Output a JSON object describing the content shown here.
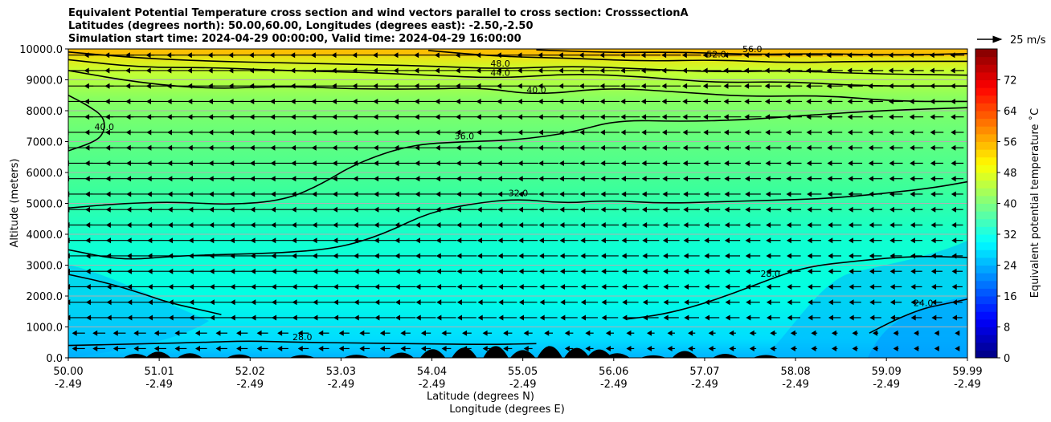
{
  "chart_data": {
    "type": "contour-cross-section",
    "title_lines": [
      "Equivalent Potential Temperature cross section and wind vectors parallel to cross section: CrosssectionA",
      "Latitudes (degrees north): 50.00,60.00, Longitudes (degrees east): -2.50,-2.50",
      "Simulation start time: 2024-04-29 00:00:00, Valid time: 2024-04-29 16:00:00"
    ],
    "xlabel": "Latitude (degrees N)",
    "xlabel2": "Longitude (degrees E)",
    "ylabel": "Altitude (meters)",
    "x_range": [
      50.0,
      59.99
    ],
    "ylim": [
      0,
      10000
    ],
    "x_ticks": [
      {
        "value": 50.0,
        "lat": "50.00",
        "lon": "-2.49"
      },
      {
        "value": 51.01,
        "lat": "51.01",
        "lon": "-2.49"
      },
      {
        "value": 52.02,
        "lat": "52.02",
        "lon": "-2.49"
      },
      {
        "value": 53.03,
        "lat": "53.03",
        "lon": "-2.49"
      },
      {
        "value": 54.04,
        "lat": "54.04",
        "lon": "-2.49"
      },
      {
        "value": 55.05,
        "lat": "55.05",
        "lon": "-2.49"
      },
      {
        "value": 56.06,
        "lat": "56.06",
        "lon": "-2.49"
      },
      {
        "value": 57.07,
        "lat": "57.07",
        "lon": "-2.49"
      },
      {
        "value": 58.08,
        "lat": "58.08",
        "lon": "-2.49"
      },
      {
        "value": 59.09,
        "lat": "59.09",
        "lon": "-2.49"
      },
      {
        "value": 59.99,
        "lat": "59.99",
        "lon": "-2.49"
      }
    ],
    "y_ticks": [
      {
        "value": 0,
        "label": "0.0"
      },
      {
        "value": 1000,
        "label": "1000.0"
      },
      {
        "value": 2000,
        "label": "2000.0"
      },
      {
        "value": 3000,
        "label": "3000.0"
      },
      {
        "value": 4000,
        "label": "4000.0"
      },
      {
        "value": 5000,
        "label": "5000.0"
      },
      {
        "value": 6000,
        "label": "6000.0"
      },
      {
        "value": 7000,
        "label": "7000.0"
      },
      {
        "value": 8000,
        "label": "8000.0"
      },
      {
        "value": 9000,
        "label": "9000.0"
      },
      {
        "value": 10000,
        "label": "10000.0"
      }
    ],
    "grid": "horizontal",
    "colorbar": {
      "label": "Equivalent potential temperature ˚C",
      "range": [
        0,
        80
      ],
      "step": 2,
      "ticks": [
        "0",
        "8",
        "16",
        "24",
        "32",
        "40",
        "48",
        "56",
        "64",
        "72"
      ],
      "tick_values": [
        0,
        8,
        16,
        24,
        32,
        40,
        48,
        56,
        64,
        72
      ],
      "colormap": "jet"
    },
    "quiver_key": {
      "label": "25 m/s",
      "speed": 25
    },
    "contour_levels_labeled": [
      "24.0",
      "28.0",
      "32.0",
      "36.0",
      "40.0",
      "44.0",
      "48.0",
      "52.0",
      "56.0"
    ],
    "contours": [
      {
        "level": 28,
        "points": [
          [
            50.0,
            400
          ],
          [
            50.8,
            450
          ],
          [
            51.5,
            500
          ],
          [
            52.0,
            550
          ],
          [
            52.6,
            500
          ],
          [
            53.2,
            480
          ],
          [
            54.0,
            450
          ],
          [
            54.7,
            430
          ],
          [
            55.2,
            460
          ]
        ]
      },
      {
        "level": 28,
        "points": [
          [
            56.2,
            1250
          ],
          [
            56.6,
            1400
          ],
          [
            57.0,
            1700
          ],
          [
            57.4,
            2100
          ],
          [
            57.8,
            2550
          ],
          [
            58.2,
            2950
          ],
          [
            58.8,
            3150
          ],
          [
            59.4,
            3300
          ],
          [
            59.99,
            3250
          ]
        ]
      },
      {
        "level": 24,
        "points": [
          [
            58.9,
            800
          ],
          [
            59.2,
            1250
          ],
          [
            59.5,
            1600
          ],
          [
            59.75,
            1750
          ],
          [
            59.99,
            1900
          ]
        ]
      },
      {
        "level": 30,
        "points": [
          [
            50.0,
            2700
          ],
          [
            50.4,
            2450
          ],
          [
            50.8,
            2100
          ],
          [
            51.1,
            1800
          ],
          [
            51.4,
            1600
          ],
          [
            51.7,
            1400
          ]
        ]
      },
      {
        "level": 32,
        "points": [
          [
            50.0,
            3500
          ],
          [
            50.6,
            3150
          ],
          [
            51.2,
            3300
          ],
          [
            51.8,
            3350
          ],
          [
            52.4,
            3400
          ],
          [
            53.0,
            3550
          ],
          [
            53.5,
            4000
          ],
          [
            54.0,
            4700
          ],
          [
            54.5,
            5000
          ],
          [
            55.0,
            5150
          ],
          [
            55.5,
            5000
          ],
          [
            56.0,
            5100
          ],
          [
            56.6,
            5000
          ],
          [
            57.2,
            5050
          ],
          [
            57.8,
            5100
          ],
          [
            58.4,
            5150
          ],
          [
            59.0,
            5300
          ],
          [
            59.6,
            5500
          ],
          [
            59.99,
            5700
          ]
        ]
      },
      {
        "level": 36,
        "points": [
          [
            50.0,
            4850
          ],
          [
            50.6,
            5000
          ],
          [
            51.2,
            5050
          ],
          [
            51.8,
            4950
          ],
          [
            52.4,
            5100
          ],
          [
            52.8,
            5600
          ],
          [
            53.2,
            6300
          ],
          [
            53.8,
            6900
          ],
          [
            54.4,
            7000
          ],
          [
            55.0,
            7050
          ],
          [
            55.6,
            7300
          ],
          [
            56.1,
            7700
          ],
          [
            56.8,
            7650
          ],
          [
            57.5,
            7700
          ],
          [
            58.2,
            7850
          ],
          [
            59.0,
            8000
          ],
          [
            59.99,
            8100
          ]
        ]
      },
      {
        "level": 40,
        "points": [
          [
            50.0,
            8500
          ],
          [
            50.2,
            8200
          ],
          [
            50.4,
            7800
          ],
          [
            50.4,
            7300
          ],
          [
            50.3,
            7000
          ],
          [
            50.0,
            6700
          ]
        ]
      },
      {
        "level": 40,
        "points": [
          [
            50.0,
            9300
          ],
          [
            50.8,
            8900
          ],
          [
            51.6,
            8700
          ],
          [
            52.4,
            8800
          ],
          [
            53.2,
            8700
          ],
          [
            54.0,
            8700
          ],
          [
            54.6,
            8750
          ],
          [
            55.2,
            8500
          ],
          [
            56.0,
            8750
          ],
          [
            56.8,
            8600
          ],
          [
            57.6,
            8450
          ],
          [
            58.4,
            8500
          ],
          [
            59.2,
            8300
          ],
          [
            59.99,
            8300
          ]
        ]
      },
      {
        "level": 44,
        "points": [
          [
            50.0,
            9650
          ],
          [
            50.8,
            9400
          ],
          [
            51.6,
            9400
          ],
          [
            52.4,
            9300
          ],
          [
            53.2,
            9250
          ],
          [
            54.0,
            9150
          ],
          [
            54.8,
            9050
          ],
          [
            55.6,
            9200
          ],
          [
            56.4,
            9100
          ],
          [
            57.2,
            8900
          ],
          [
            58.0,
            8950
          ],
          [
            58.8,
            8800
          ],
          [
            59.99,
            8800
          ]
        ]
      },
      {
        "level": 48,
        "points": [
          [
            50.0,
            9900
          ],
          [
            50.8,
            9700
          ],
          [
            51.6,
            9600
          ],
          [
            52.4,
            9550
          ],
          [
            53.2,
            9500
          ],
          [
            54.0,
            9450
          ],
          [
            54.8,
            9350
          ],
          [
            55.6,
            9450
          ],
          [
            56.4,
            9350
          ],
          [
            57.2,
            9250
          ],
          [
            58.0,
            9300
          ],
          [
            58.8,
            9200
          ],
          [
            59.99,
            9150
          ]
        ]
      },
      {
        "level": 52,
        "points": [
          [
            54.0,
            9950
          ],
          [
            54.8,
            9750
          ],
          [
            55.6,
            9700
          ],
          [
            56.4,
            9600
          ],
          [
            57.2,
            9650
          ],
          [
            58.0,
            9550
          ],
          [
            58.8,
            9600
          ],
          [
            59.99,
            9600
          ]
        ]
      },
      {
        "level": 56,
        "points": [
          [
            55.2,
            9970
          ],
          [
            56.0,
            9880
          ],
          [
            56.8,
            9900
          ],
          [
            57.6,
            9820
          ],
          [
            58.4,
            9850
          ],
          [
            59.2,
            9800
          ],
          [
            59.99,
            9850
          ]
        ]
      }
    ],
    "terrain_peaks": [
      {
        "x": 50.75,
        "h": 130
      },
      {
        "x": 51.0,
        "h": 200
      },
      {
        "x": 51.35,
        "h": 150
      },
      {
        "x": 51.9,
        "h": 110
      },
      {
        "x": 52.6,
        "h": 90
      },
      {
        "x": 53.2,
        "h": 100
      },
      {
        "x": 53.7,
        "h": 170
      },
      {
        "x": 54.05,
        "h": 280
      },
      {
        "x": 54.4,
        "h": 330
      },
      {
        "x": 54.75,
        "h": 380
      },
      {
        "x": 55.05,
        "h": 250
      },
      {
        "x": 55.35,
        "h": 380
      },
      {
        "x": 55.65,
        "h": 320
      },
      {
        "x": 55.9,
        "h": 270
      },
      {
        "x": 56.1,
        "h": 150
      },
      {
        "x": 56.5,
        "h": 80
      },
      {
        "x": 56.85,
        "h": 220
      },
      {
        "x": 57.3,
        "h": 130
      },
      {
        "x": 57.75,
        "h": 90
      }
    ]
  }
}
